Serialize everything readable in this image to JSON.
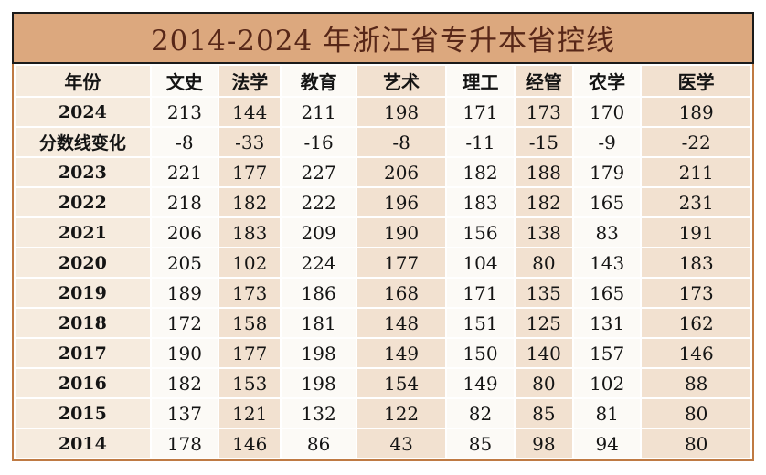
{
  "title": "2014-2024 年浙江省专升本省控线",
  "colors": {
    "title_bar_bg": "#DCA87E",
    "title_text": "#572718",
    "title_border": "#1A1A1A",
    "table_outer_border": "#BF7A43",
    "year_column_bg": "#F6EBDE",
    "light_column_bg": "#FCFAF6",
    "tan_column_bg": "#F2E1D0",
    "cell_text": "#141414",
    "grid_gap": "#FFFFFF"
  },
  "chart_data": {
    "type": "table",
    "title": "2014-2024 年浙江省专升本省控线",
    "columns": [
      "年份",
      "文史",
      "法学",
      "教育",
      "艺术",
      "理工",
      "经管",
      "农学",
      "医学"
    ],
    "rows": [
      {
        "label": "2024",
        "values": [
          "213",
          "144",
          "211",
          "198",
          "171",
          "173",
          "170",
          "189"
        ]
      },
      {
        "label": "分数线变化",
        "values": [
          "-8",
          "-33",
          "-16",
          "-8",
          "-11",
          "-15",
          "-9",
          "-22"
        ]
      },
      {
        "label": "2023",
        "values": [
          "221",
          "177",
          "227",
          "206",
          "182",
          "188",
          "179",
          "211"
        ]
      },
      {
        "label": "2022",
        "values": [
          "218",
          "182",
          "222",
          "196",
          "183",
          "182",
          "165",
          "231"
        ]
      },
      {
        "label": "2021",
        "values": [
          "206",
          "183",
          "209",
          "190",
          "156",
          "138",
          "83",
          "191"
        ]
      },
      {
        "label": "2020",
        "values": [
          "205",
          "102",
          "224",
          "177",
          "104",
          "80",
          "143",
          "183"
        ]
      },
      {
        "label": "2019",
        "values": [
          "189",
          "173",
          "186",
          "168",
          "171",
          "135",
          "165",
          "173"
        ]
      },
      {
        "label": "2018",
        "values": [
          "172",
          "158",
          "181",
          "148",
          "151",
          "125",
          "131",
          "162"
        ]
      },
      {
        "label": "2017",
        "values": [
          "190",
          "177",
          "198",
          "149",
          "150",
          "140",
          "157",
          "146"
        ]
      },
      {
        "label": "2016",
        "values": [
          "182",
          "153",
          "198",
          "154",
          "149",
          "80",
          "102",
          "88"
        ]
      },
      {
        "label": "2015",
        "values": [
          "137",
          "121",
          "132",
          "122",
          "82",
          "85",
          "81",
          "80"
        ]
      },
      {
        "label": "2014",
        "values": [
          "178",
          "146",
          "86",
          "43",
          "85",
          "98",
          "94",
          "80"
        ]
      }
    ]
  }
}
